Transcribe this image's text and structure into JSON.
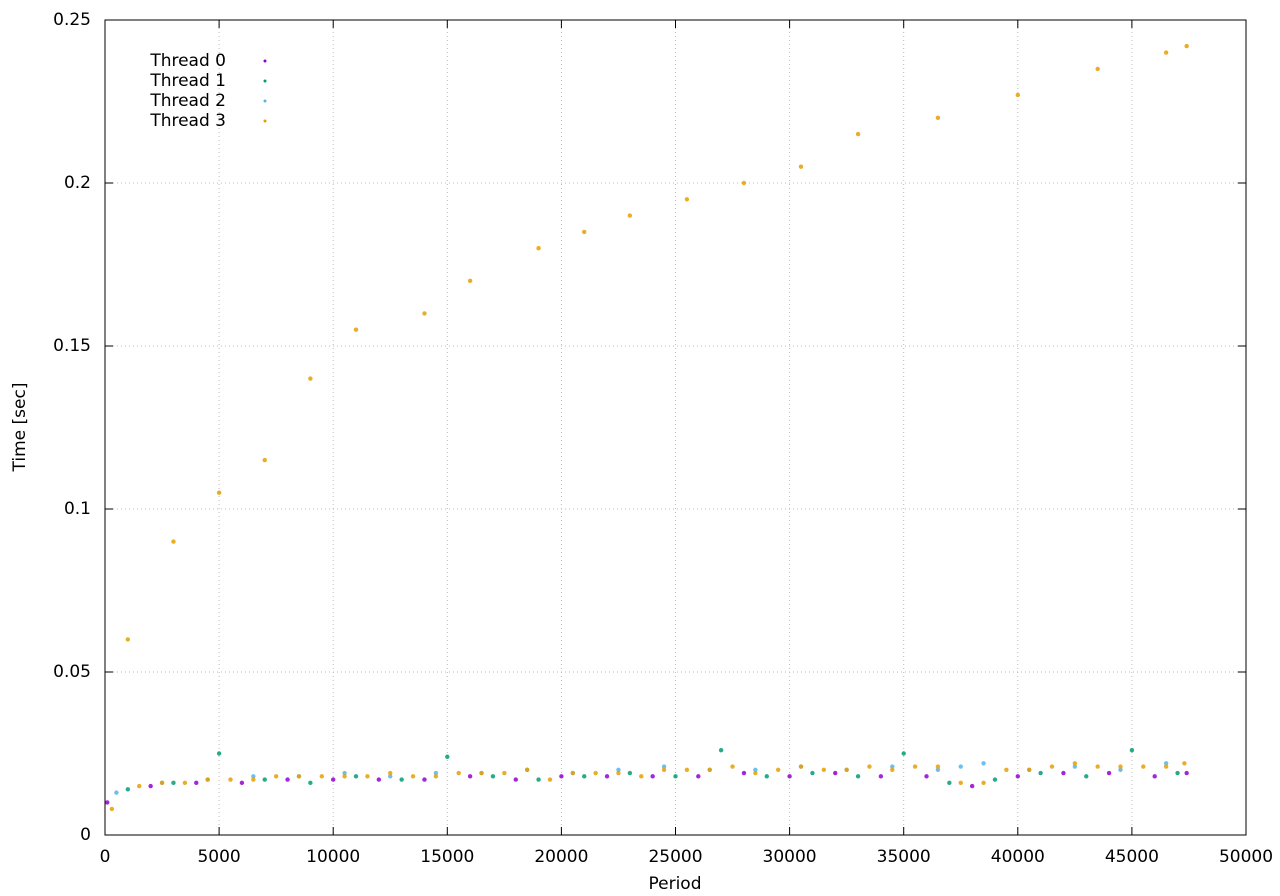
{
  "chart_data": {
    "type": "scatter",
    "xlabel": "Period",
    "ylabel": "Time [sec]",
    "xlim": [
      0,
      50000
    ],
    "ylim": [
      0,
      0.25
    ],
    "xticks": [
      0,
      5000,
      10000,
      15000,
      20000,
      25000,
      30000,
      35000,
      40000,
      45000,
      50000
    ],
    "yticks": [
      0,
      0.05,
      0.1,
      0.15,
      0.2,
      0.25
    ],
    "grid": true,
    "legend": "top-left",
    "series": [
      {
        "name": "Thread 0",
        "color": "#9400d3",
        "x": [
          100,
          2000,
          4000,
          6000,
          8000,
          10000,
          12000,
          14000,
          16000,
          18000,
          20000,
          22000,
          24000,
          26000,
          28000,
          30000,
          32000,
          34000,
          36000,
          38000,
          40000,
          42000,
          44000,
          46000,
          47400
        ],
        "values": [
          0.01,
          0.015,
          0.016,
          0.016,
          0.017,
          0.017,
          0.017,
          0.017,
          0.018,
          0.017,
          0.018,
          0.018,
          0.018,
          0.018,
          0.019,
          0.018,
          0.019,
          0.018,
          0.018,
          0.015,
          0.018,
          0.019,
          0.019,
          0.018,
          0.019
        ]
      },
      {
        "name": "Thread 1",
        "color": "#009e73",
        "x": [
          1000,
          3000,
          5000,
          7000,
          9000,
          11000,
          13000,
          15000,
          17000,
          19000,
          21000,
          23000,
          25000,
          27000,
          29000,
          31000,
          33000,
          35000,
          37000,
          39000,
          41000,
          43000,
          45000,
          47000
        ],
        "values": [
          0.014,
          0.016,
          0.025,
          0.017,
          0.016,
          0.018,
          0.017,
          0.024,
          0.018,
          0.017,
          0.018,
          0.019,
          0.018,
          0.026,
          0.018,
          0.019,
          0.018,
          0.025,
          0.016,
          0.017,
          0.019,
          0.018,
          0.026,
          0.019
        ]
      },
      {
        "name": "Thread 2",
        "color": "#56b4e9",
        "x": [
          500,
          2500,
          4500,
          6500,
          8500,
          10500,
          12500,
          14500,
          16500,
          18500,
          20500,
          22500,
          24500,
          26500,
          28500,
          30500,
          32500,
          34500,
          36500,
          37500,
          38500,
          40500,
          42500,
          44500,
          46500
        ],
        "values": [
          0.013,
          0.016,
          0.017,
          0.018,
          0.018,
          0.019,
          0.018,
          0.019,
          0.019,
          0.02,
          0.019,
          0.02,
          0.021,
          0.02,
          0.02,
          0.021,
          0.02,
          0.021,
          0.02,
          0.021,
          0.022,
          0.02,
          0.021,
          0.02,
          0.022
        ]
      },
      {
        "name": "Thread 3",
        "color": "#e69f00",
        "x": [
          300,
          1500,
          2500,
          3500,
          4500,
          5500,
          6500,
          7500,
          8500,
          9500,
          10500,
          11500,
          12500,
          13500,
          14500,
          15500,
          16500,
          17500,
          18500,
          19500,
          20500,
          21500,
          22500,
          23500,
          24500,
          25500,
          26500,
          27500,
          28500,
          29500,
          30500,
          31500,
          32500,
          33500,
          34500,
          35500,
          36500,
          37500,
          38500,
          39500,
          40500,
          41500,
          42500,
          43500,
          44500,
          45500,
          46500,
          47300,
          1000,
          3000,
          5000,
          7000,
          9000,
          11000,
          14000,
          16000,
          19000,
          21000,
          23000,
          25500,
          28000,
          30500,
          33000,
          36500,
          40000,
          43500,
          46500,
          47400
        ],
        "values": [
          0.008,
          0.015,
          0.016,
          0.016,
          0.017,
          0.017,
          0.017,
          0.018,
          0.018,
          0.018,
          0.018,
          0.018,
          0.019,
          0.018,
          0.018,
          0.019,
          0.019,
          0.019,
          0.02,
          0.017,
          0.019,
          0.019,
          0.019,
          0.018,
          0.02,
          0.02,
          0.02,
          0.021,
          0.019,
          0.02,
          0.021,
          0.02,
          0.02,
          0.021,
          0.02,
          0.021,
          0.021,
          0.016,
          0.016,
          0.02,
          0.02,
          0.021,
          0.022,
          0.021,
          0.021,
          0.021,
          0.021,
          0.022,
          0.06,
          0.09,
          0.105,
          0.115,
          0.14,
          0.155,
          0.16,
          0.17,
          0.18,
          0.185,
          0.19,
          0.195,
          0.2,
          0.205,
          0.215,
          0.22,
          0.227,
          0.235,
          0.24,
          0.242
        ]
      }
    ]
  }
}
